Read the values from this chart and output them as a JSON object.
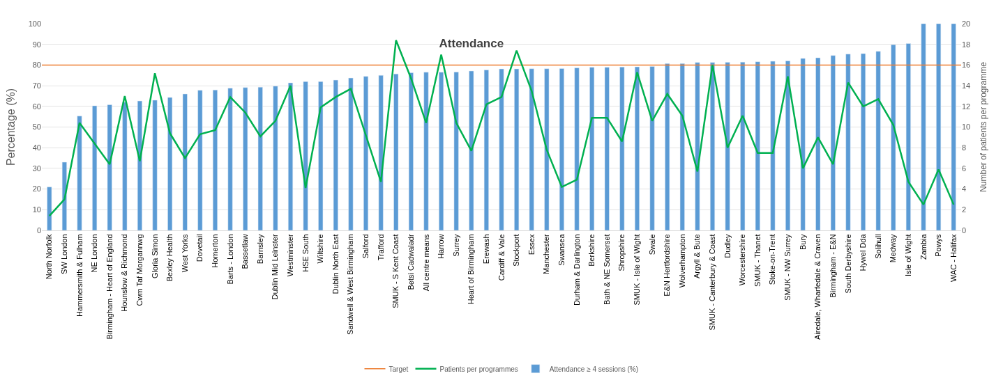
{
  "chart_data": {
    "type": "bar",
    "title": "Attendance",
    "ylabel": "Percentage (%)",
    "y2label": "Number of patients per programme",
    "categories": [
      "North Norfolk",
      "SW London",
      "Hammersmith & Fulham",
      "NE London",
      "Birmingham - Heart of England",
      "Hounslow & Richmond",
      "Cwm Taf Morgannwg",
      "Gloria Simon",
      "Bexley Health",
      "West Yorks",
      "Dovetail",
      "Homerton",
      "Barts - London",
      "Bassetlaw",
      "Barnsley",
      "Dublin Mid Leinster",
      "Westminster",
      "HSE South",
      "Wiltshire",
      "Dublin North East",
      "Sandwell & West Birmingham",
      "Salford",
      "Trafford",
      "SMUK - S Kent Coast",
      "Betsi Cadwaladr",
      "All centre means",
      "Harrow",
      "Surrey",
      "Heart of Birmingham",
      "Erewash",
      "Cardiff & Vale",
      "Stockport",
      "Essex",
      "Manchester",
      "Swansea",
      "Durham & Darlington",
      "Berkshire",
      "Bath & NE Somerset",
      "Shropshire",
      "SMUK - Isle of Wight",
      "Swale",
      "E&N Hertfordshire",
      "Wolverhampton",
      "Argyll & Bute",
      "SMUK - Canterbury & Coast",
      "Dudley",
      "Worcestershire",
      "SMUK - Thanet",
      "Stoke-on-Trent",
      "SMUK - NW Surrey",
      "Bury",
      "Airedale, Wharfedale & Craven",
      "Birmingham - E&N",
      "South Derbyshire",
      "Hywel Dda",
      "Solihull",
      "Medway",
      "Isle of Wight",
      "Zambia",
      "Powys",
      "WAC - Halifax"
    ],
    "series": [
      {
        "name": "Attendance ≥ 4 sessions (%)",
        "color": "#5b9bd5",
        "values": [
          21,
          33,
          55.3,
          60.3,
          60.8,
          62,
          62.6,
          63,
          64.3,
          66,
          67.8,
          67.9,
          68.8,
          69.1,
          69.3,
          69.8,
          71.4,
          72,
          72,
          72.7,
          73.7,
          74.5,
          75,
          75.7,
          76.3,
          76.5,
          76.5,
          76.6,
          77.1,
          77.6,
          78.1,
          78.1,
          78.2,
          78.2,
          78.3,
          78.6,
          78.9,
          78.9,
          79,
          79.1,
          79.3,
          80.7,
          80.7,
          81.2,
          81.2,
          81.3,
          81.4,
          81.6,
          81.8,
          82,
          83.2,
          83.5,
          84.6,
          85.3,
          85.5,
          86.6,
          89.8,
          90.4,
          100,
          100,
          100
        ]
      },
      {
        "name": "Patients per programmes",
        "type": "line",
        "axis": "y2",
        "color": "#00b050",
        "values": [
          1.4,
          3.0,
          10.4,
          8.4,
          6.4,
          13.0,
          6.7,
          15.2,
          9.4,
          7.0,
          9.3,
          9.7,
          12.9,
          11.4,
          9.1,
          10.6,
          14.0,
          4.1,
          11.9,
          12.9,
          13.7,
          9.2,
          4.7,
          18.4,
          14.7,
          10.4,
          17.0,
          10.4,
          7.7,
          12.2,
          12.9,
          17.4,
          13.5,
          7.8,
          4.2,
          4.9,
          10.9,
          10.9,
          8.6,
          15.3,
          10.6,
          13.2,
          11.1,
          5.7,
          16.0,
          8.0,
          11.1,
          7.5,
          7.5,
          14.9,
          6.0,
          9.0,
          6.4,
          14.3,
          12.0,
          12.7,
          10.2,
          4.7,
          2.5,
          5.9,
          2.5
        ]
      }
    ],
    "ref_lines": [
      {
        "axis": "y",
        "value": 80,
        "label": "Target",
        "color": "#ed7d31"
      }
    ],
    "ylim": [
      0,
      100
    ],
    "yticks": [
      0,
      10,
      20,
      30,
      40,
      50,
      60,
      70,
      80,
      90,
      100
    ],
    "y2lim": [
      0,
      20
    ],
    "y2ticks": [
      0,
      2,
      4,
      6,
      8,
      10,
      12,
      14,
      16,
      18,
      20
    ],
    "grid": "y",
    "legend": "bottom",
    "marker": "none",
    "line_style": "solid"
  }
}
